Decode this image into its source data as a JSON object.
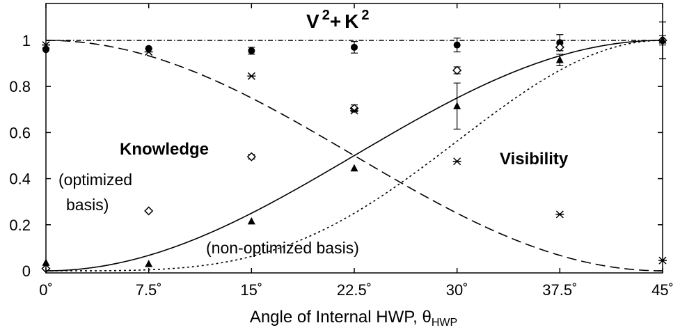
{
  "chart_data": {
    "type": "scatter",
    "title": "",
    "xlabel": "Angle of Internal HWP, θ",
    "xlabel_subscript": "HWP",
    "ylabel": "",
    "xlim": [
      0,
      45
    ],
    "ylim": [
      0,
      1.05
    ],
    "grid": false,
    "x_ticks": [
      0,
      7.5,
      15,
      22.5,
      30,
      37.5,
      45
    ],
    "x_tick_labels": [
      "0˚",
      "7.5˚",
      "15˚",
      "22.5˚",
      "30˚",
      "37.5˚",
      "45˚"
    ],
    "y_ticks": [
      0,
      0.2,
      0.4,
      0.6,
      0.8,
      1
    ],
    "y_tick_labels": [
      "0",
      "0.2",
      "0.4",
      "0.6",
      "0.8",
      "1"
    ],
    "annotations": {
      "sum_label": {
        "base1": "V",
        "exp1": "2",
        "plus": "+",
        "base2": "K",
        "exp2": "2"
      },
      "knowledge": "Knowledge",
      "optimized_line1": "(optimized",
      "optimized_line2": "basis)",
      "visibility": "Visibility",
      "non_optimized": "(non-optimized basis)"
    },
    "series": [
      {
        "marker": "filled-circle",
        "x": [
          0,
          7.5,
          15,
          22.5,
          30,
          37.5,
          45
        ],
        "y": [
          0.96,
          0.965,
          0.955,
          0.97,
          0.98,
          0.99,
          1.0
        ],
        "err": [
          0.0,
          0.0,
          0.015,
          0.025,
          0.03,
          0.035,
          0.08
        ]
      },
      {
        "marker": "open-diamond",
        "x": [
          0,
          7.5,
          15,
          22.5,
          30,
          37.5,
          45
        ],
        "y": [
          0.01,
          0.26,
          0.495,
          0.705,
          0.87,
          0.97,
          1.0
        ],
        "err": [
          0.0,
          0.0,
          0.01,
          0.015,
          0.015,
          0.015,
          0.02
        ]
      },
      {
        "marker": "cross",
        "x": [
          0,
          7.5,
          15,
          22.5,
          30,
          37.5,
          45
        ],
        "y": [
          0.98,
          0.95,
          0.845,
          0.695,
          0.475,
          0.245,
          0.045
        ],
        "err": [
          0.0,
          0.0,
          0.0,
          0.0,
          0.0,
          0.0,
          0.0
        ]
      },
      {
        "marker": "filled-triangle",
        "x": [
          0,
          7.5,
          15,
          22.5,
          30,
          37.5,
          45
        ],
        "y": [
          0.035,
          0.03,
          0.215,
          0.445,
          0.715,
          0.915,
          1.0
        ],
        "err": [
          0.0,
          0.0,
          0.0,
          0.0,
          0.1,
          0.025,
          0.08
        ]
      }
    ],
    "curves": [
      {
        "function": "sin^2(2*theta)",
        "style": "solid"
      },
      {
        "function": "cos^2(2*theta)",
        "style": "dashed"
      },
      {
        "function": "sin^4(2*theta)",
        "style": "dotted"
      },
      {
        "function": "1",
        "style": "dash-dot"
      }
    ],
    "colors": {
      "ink": "#000000",
      "background": "#ffffff"
    }
  }
}
